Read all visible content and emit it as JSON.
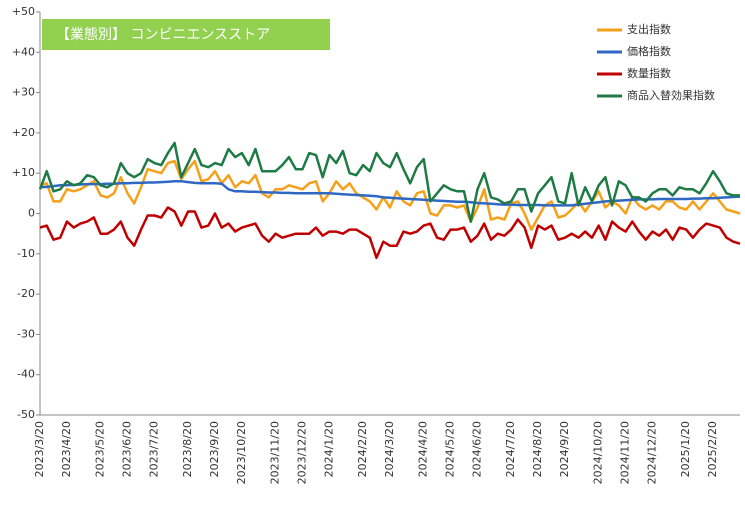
{
  "chart_data": {
    "type": "line",
    "title": "【業態別】 コンビニエンスストア",
    "title_color": "#92d050",
    "legend": "top-right",
    "grid": false,
    "ylim": [
      -50,
      50
    ],
    "yticks": [
      {
        "value": 50,
        "label": "+50"
      },
      {
        "value": 40,
        "label": "+40"
      },
      {
        "value": 30,
        "label": "+30"
      },
      {
        "value": 20,
        "label": "+20"
      },
      {
        "value": 10,
        "label": "+10"
      },
      0,
      -10,
      -20,
      -30,
      -40,
      -50
    ],
    "categories": [
      "2023/3/20",
      null,
      null,
      null,
      "2023/4/20",
      null,
      null,
      null,
      null,
      "2023/5/20",
      null,
      null,
      null,
      "2023/6/20",
      null,
      null,
      null,
      "2023/7/20",
      null,
      null,
      null,
      null,
      "2023/8/20",
      null,
      null,
      null,
      "2023/9/20",
      null,
      null,
      null,
      "2023/10/20",
      null,
      null,
      null,
      null,
      "2023/11/20",
      null,
      null,
      null,
      "2023/12/20",
      null,
      null,
      null,
      "2024/1/20",
      null,
      null,
      null,
      null,
      "2024/2/20",
      null,
      null,
      null,
      "2024/3/20",
      null,
      null,
      null,
      null,
      "2024/4/20",
      null,
      null,
      null,
      "2024/5/20",
      null,
      null,
      null,
      "2024/6/20",
      null,
      null,
      null,
      null,
      "2024/7/20",
      null,
      null,
      null,
      "2024/8/20",
      null,
      null,
      null,
      "2024/9/20",
      null,
      null,
      null,
      null,
      "2024/10/20",
      null,
      null,
      null,
      "2024/11/20",
      null,
      null,
      null,
      "2024/12/20",
      null,
      null,
      null,
      null,
      "2025/1/20",
      null,
      null,
      null,
      "2025/2/20",
      null,
      null,
      null,
      null
    ],
    "series": [
      {
        "name": "支出指数",
        "color": "#f5a01a",
        "values": [
          7,
          7.5,
          3,
          3,
          6,
          5.5,
          6,
          7,
          8,
          4.5,
          4,
          5,
          9,
          5,
          2.5,
          6.5,
          11,
          10.5,
          10,
          12.5,
          13,
          8.5,
          11,
          13,
          8,
          8.5,
          10.5,
          7.5,
          9.5,
          6.5,
          8,
          7.5,
          9.5,
          5,
          4,
          6,
          6,
          7,
          6.5,
          6,
          7.5,
          8,
          3,
          5,
          8,
          6,
          7.5,
          5,
          4,
          3,
          1,
          4,
          1.5,
          5.5,
          3,
          2,
          5,
          5.5,
          0,
          -0.5,
          2,
          2,
          1.5,
          2,
          -2,
          1.5,
          6,
          -1.5,
          -1,
          -1.5,
          2.5,
          3,
          0,
          -4,
          -1,
          2,
          3,
          -1,
          -0.5,
          1,
          3,
          0.5,
          3,
          5.5,
          1.5,
          3,
          2,
          0,
          4,
          2,
          1,
          2,
          1,
          3,
          3,
          1.5,
          1,
          3,
          1,
          3,
          5,
          3,
          1,
          0.5,
          0
        ]
      },
      {
        "name": "価格指数",
        "color": "#2e67c4",
        "values": [
          6.5,
          6.6,
          6.8,
          7.0,
          7.0,
          7.1,
          7.2,
          7.3,
          7.3,
          7.3,
          7.4,
          7.4,
          7.5,
          7.5,
          7.6,
          7.6,
          7.7,
          7.7,
          7.8,
          7.9,
          8.0,
          8.0,
          7.8,
          7.6,
          7.5,
          7.5,
          7.5,
          7.4,
          6.0,
          5.5,
          5.5,
          5.4,
          5.4,
          5.3,
          5.2,
          5.2,
          5.1,
          5.1,
          5.0,
          5.0,
          5.0,
          5.0,
          5.0,
          5.0,
          4.9,
          4.8,
          4.7,
          4.6,
          4.5,
          4.4,
          4.3,
          4.0,
          3.9,
          3.8,
          3.7,
          3.6,
          3.5,
          3.4,
          3.3,
          3.2,
          3.1,
          3.0,
          2.9,
          2.9,
          2.8,
          2.6,
          2.5,
          2.4,
          2.3,
          2.2,
          2.2,
          2.1,
          2.1,
          2.1,
          2.1,
          2.0,
          2.0,
          2.0,
          2.0,
          2.0,
          2.2,
          2.4,
          2.6,
          2.8,
          3.0,
          3.1,
          3.2,
          3.3,
          3.4,
          3.5,
          3.5,
          3.5,
          3.6,
          3.6,
          3.6,
          3.6,
          3.6,
          3.7,
          3.7,
          3.8,
          3.8,
          3.9,
          4.0,
          4.1,
          4.2
        ]
      },
      {
        "name": "数量指数",
        "color": "#c00000",
        "values": [
          -3.5,
          -3,
          -6.5,
          -6,
          -2,
          -3.5,
          -2.5,
          -2,
          -1,
          -5,
          -5,
          -4,
          -2,
          -6,
          -8,
          -4,
          -0.5,
          -0.5,
          -1,
          1.5,
          0.5,
          -3,
          0.5,
          0.5,
          -3.5,
          -3,
          0,
          -3.5,
          -2.5,
          -4.5,
          -3.5,
          -3,
          -2.5,
          -5.5,
          -7,
          -5,
          -6,
          -5.5,
          -5,
          -5,
          -5,
          -3.5,
          -5.5,
          -4.5,
          -4.5,
          -5,
          -4,
          -4,
          -5,
          -6,
          -11,
          -7,
          -8,
          -8,
          -4.5,
          -5,
          -4.5,
          -3,
          -2.5,
          -6,
          -6.5,
          -4,
          -4,
          -3.5,
          -7,
          -5.5,
          -2.5,
          -6.5,
          -5,
          -5.5,
          -4,
          -1.5,
          -3.5,
          -8.5,
          -3,
          -4,
          -3,
          -6.5,
          -6,
          -5,
          -6,
          -4.5,
          -6,
          -3,
          -6.5,
          -2,
          -3.5,
          -4.5,
          -2,
          -4.5,
          -6.5,
          -4.5,
          -5.5,
          -4,
          -6.5,
          -3.5,
          -4,
          -6,
          -4,
          -2.5,
          -3,
          -3.5,
          -6,
          -7,
          -7.5
        ]
      },
      {
        "name": "商品入替効果指数",
        "color": "#1e7b45",
        "values": [
          6,
          10.5,
          5.5,
          6,
          8,
          7,
          7.5,
          9.5,
          9,
          7,
          6.5,
          7.5,
          12.5,
          10,
          9,
          10,
          13.5,
          12.5,
          12,
          15,
          17.5,
          9,
          12.5,
          16,
          12,
          11.5,
          12.5,
          12,
          16,
          14,
          15,
          12,
          16,
          10.5,
          10.5,
          10.5,
          12,
          14,
          11,
          11,
          15,
          14.5,
          9,
          14.5,
          12.5,
          15.5,
          10,
          9.5,
          12,
          10.5,
          15,
          12.5,
          11.5,
          15,
          11,
          7.5,
          11.5,
          13.5,
          3,
          5,
          7,
          6,
          5.5,
          5.5,
          -2,
          6,
          10,
          4,
          3.5,
          2.5,
          3,
          6,
          6,
          0.5,
          5,
          7,
          9,
          3,
          2.5,
          10,
          2,
          6.5,
          3,
          7,
          9,
          2,
          8,
          7,
          4,
          4,
          3,
          5,
          6,
          6,
          4.5,
          6.5,
          6,
          6,
          5,
          7.5,
          10.5,
          8,
          5,
          4.5,
          4.5
        ]
      }
    ]
  }
}
